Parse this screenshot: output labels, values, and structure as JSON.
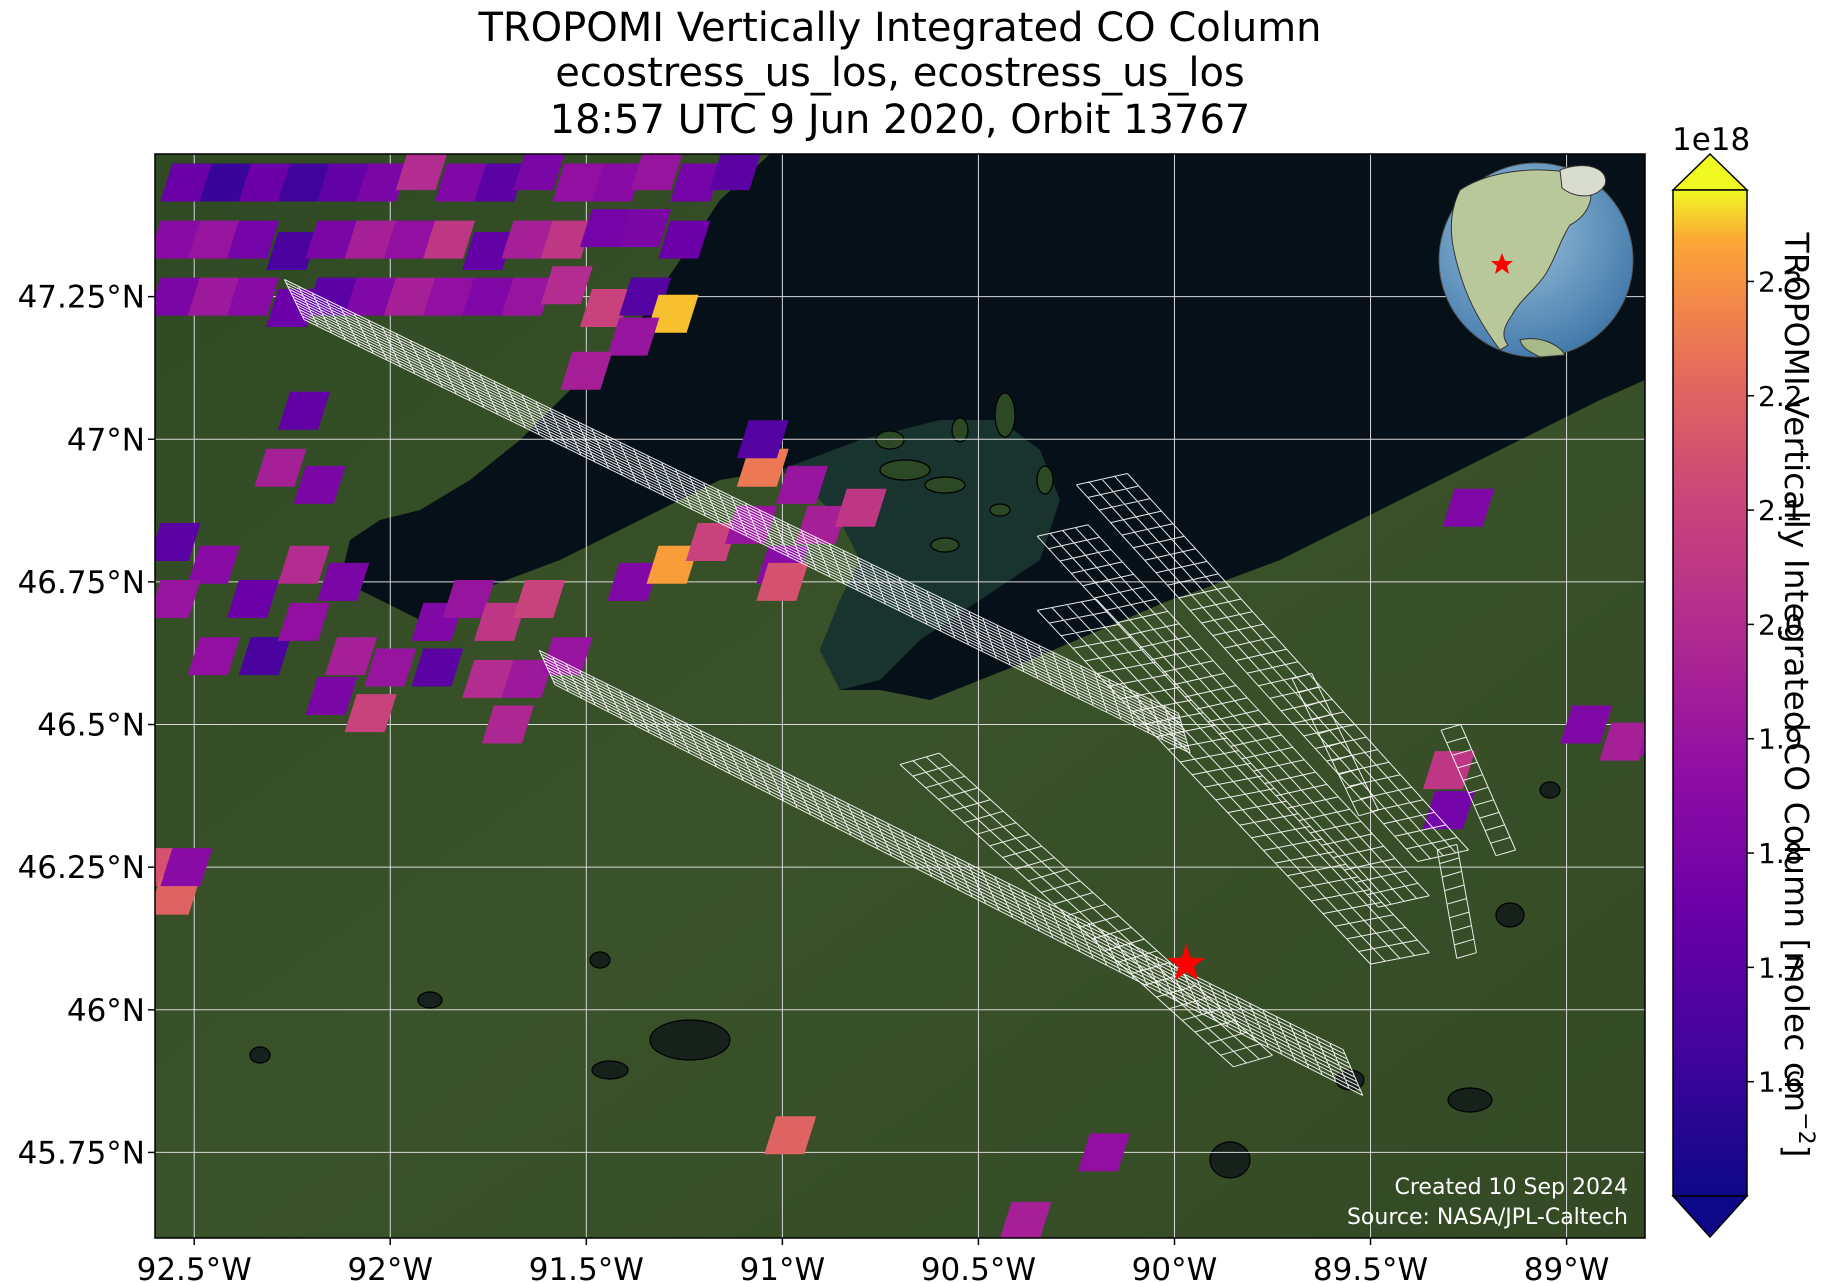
{
  "title_lines": [
    "TROPOMI Vertically Integrated CO Column",
    "ecostress_us_los, ecostress_us_los",
    "18:57 UTC 9 Jun 2020, Orbit 13767"
  ],
  "map": {
    "lon_range": [
      -92.6,
      -88.8
    ],
    "lat_range": [
      45.6,
      47.5
    ],
    "lon_ticks": [
      -92.5,
      -92.0,
      -91.5,
      -91.0,
      -90.5,
      -90.0,
      -89.5,
      -89.0
    ],
    "lon_tick_labels": [
      "92.5°W",
      "92°W",
      "91.5°W",
      "91°W",
      "90.5°W",
      "90°W",
      "89.5°W",
      "89°W"
    ],
    "lat_ticks": [
      47.25,
      47.0,
      46.75,
      46.5,
      46.25,
      46.0,
      45.75
    ],
    "lat_tick_labels": [
      "47.25°N",
      "47°N",
      "46.75°N",
      "46.5°N",
      "46.25°N",
      "46°N",
      "45.75°N"
    ],
    "gridlines": true,
    "basemap": "satellite imagery, Lake Superior shoreline (Apostle Islands)",
    "target_marker": {
      "lon": -89.97,
      "lat": 46.08,
      "symbol": "red-star"
    },
    "credit_lines": [
      "Created 10 Sep 2024",
      "Source: NASA/JPL-Caltech"
    ],
    "inset_globe": "orthographic globe centred on North America with red star",
    "pixels": [
      {
        "lon": -92.52,
        "lat": 47.45,
        "v": 1.75
      },
      {
        "lon": -92.42,
        "lat": 47.45,
        "v": 1.6
      },
      {
        "lon": -92.32,
        "lat": 47.45,
        "v": 1.75
      },
      {
        "lon": -92.22,
        "lat": 47.45,
        "v": 1.62
      },
      {
        "lon": -92.12,
        "lat": 47.45,
        "v": 1.72
      },
      {
        "lon": -92.02,
        "lat": 47.45,
        "v": 1.8
      },
      {
        "lon": -91.92,
        "lat": 47.47,
        "v": 2.0
      },
      {
        "lon": -91.82,
        "lat": 47.45,
        "v": 1.82
      },
      {
        "lon": -91.72,
        "lat": 47.45,
        "v": 1.7
      },
      {
        "lon": -91.62,
        "lat": 47.47,
        "v": 1.8
      },
      {
        "lon": -91.52,
        "lat": 47.45,
        "v": 1.88
      },
      {
        "lon": -91.42,
        "lat": 47.45,
        "v": 1.85
      },
      {
        "lon": -91.32,
        "lat": 47.47,
        "v": 1.9
      },
      {
        "lon": -91.22,
        "lat": 47.45,
        "v": 1.78
      },
      {
        "lon": -91.12,
        "lat": 47.47,
        "v": 1.7
      },
      {
        "lon": -92.55,
        "lat": 47.35,
        "v": 1.85
      },
      {
        "lon": -92.45,
        "lat": 47.35,
        "v": 1.9
      },
      {
        "lon": -92.35,
        "lat": 47.35,
        "v": 1.78
      },
      {
        "lon": -92.25,
        "lat": 47.33,
        "v": 1.65
      },
      {
        "lon": -92.15,
        "lat": 47.35,
        "v": 1.8
      },
      {
        "lon": -92.05,
        "lat": 47.35,
        "v": 1.95
      },
      {
        "lon": -91.95,
        "lat": 47.35,
        "v": 1.88
      },
      {
        "lon": -91.85,
        "lat": 47.35,
        "v": 2.05
      },
      {
        "lon": -91.75,
        "lat": 47.33,
        "v": 1.72
      },
      {
        "lon": -91.65,
        "lat": 47.35,
        "v": 1.95
      },
      {
        "lon": -91.55,
        "lat": 47.35,
        "v": 2.05
      },
      {
        "lon": -91.45,
        "lat": 47.37,
        "v": 1.78
      },
      {
        "lon": -91.35,
        "lat": 47.37,
        "v": 1.8
      },
      {
        "lon": -91.25,
        "lat": 47.35,
        "v": 1.75
      },
      {
        "lon": -92.55,
        "lat": 47.25,
        "v": 1.8
      },
      {
        "lon": -92.45,
        "lat": 47.25,
        "v": 1.92
      },
      {
        "lon": -92.35,
        "lat": 47.25,
        "v": 1.85
      },
      {
        "lon": -92.25,
        "lat": 47.23,
        "v": 1.75
      },
      {
        "lon": -92.15,
        "lat": 47.25,
        "v": 1.7
      },
      {
        "lon": -92.05,
        "lat": 47.25,
        "v": 1.82
      },
      {
        "lon": -91.95,
        "lat": 47.25,
        "v": 1.95
      },
      {
        "lon": -91.85,
        "lat": 47.25,
        "v": 1.88
      },
      {
        "lon": -91.75,
        "lat": 47.25,
        "v": 1.82
      },
      {
        "lon": -91.65,
        "lat": 47.25,
        "v": 1.9
      },
      {
        "lon": -91.55,
        "lat": 47.27,
        "v": 2.0
      },
      {
        "lon": -91.45,
        "lat": 47.23,
        "v": 2.1
      },
      {
        "lon": -91.35,
        "lat": 47.25,
        "v": 1.68
      },
      {
        "lon": -91.28,
        "lat": 47.22,
        "v": 2.35
      },
      {
        "lon": -91.38,
        "lat": 47.18,
        "v": 1.9
      },
      {
        "lon": -91.5,
        "lat": 47.12,
        "v": 1.95
      },
      {
        "lon": -92.22,
        "lat": 47.05,
        "v": 1.72
      },
      {
        "lon": -92.28,
        "lat": 46.95,
        "v": 1.95
      },
      {
        "lon": -92.18,
        "lat": 46.92,
        "v": 1.8
      },
      {
        "lon": -92.55,
        "lat": 46.82,
        "v": 1.7
      },
      {
        "lon": -92.45,
        "lat": 46.78,
        "v": 1.85
      },
      {
        "lon": -92.55,
        "lat": 46.72,
        "v": 1.9
      },
      {
        "lon": -92.35,
        "lat": 46.72,
        "v": 1.75
      },
      {
        "lon": -92.45,
        "lat": 46.62,
        "v": 1.88
      },
      {
        "lon": -92.32,
        "lat": 46.62,
        "v": 1.65
      },
      {
        "lon": -92.22,
        "lat": 46.68,
        "v": 1.88
      },
      {
        "lon": -92.12,
        "lat": 46.75,
        "v": 1.8
      },
      {
        "lon": -92.22,
        "lat": 46.78,
        "v": 2.0
      },
      {
        "lon": -92.1,
        "lat": 46.62,
        "v": 1.95
      },
      {
        "lon": -92.0,
        "lat": 46.6,
        "v": 1.9
      },
      {
        "lon": -92.15,
        "lat": 46.55,
        "v": 1.8
      },
      {
        "lon": -92.05,
        "lat": 46.52,
        "v": 2.1
      },
      {
        "lon": -91.88,
        "lat": 46.68,
        "v": 1.82
      },
      {
        "lon": -91.8,
        "lat": 46.72,
        "v": 1.9
      },
      {
        "lon": -91.72,
        "lat": 46.68,
        "v": 2.05
      },
      {
        "lon": -91.62,
        "lat": 46.72,
        "v": 2.1
      },
      {
        "lon": -91.88,
        "lat": 46.6,
        "v": 1.7
      },
      {
        "lon": -91.75,
        "lat": 46.58,
        "v": 2.0
      },
      {
        "lon": -91.65,
        "lat": 46.58,
        "v": 1.92
      },
      {
        "lon": -91.55,
        "lat": 46.62,
        "v": 1.9
      },
      {
        "lon": -91.7,
        "lat": 46.5,
        "v": 1.98
      },
      {
        "lon": -91.38,
        "lat": 46.75,
        "v": 1.82
      },
      {
        "lon": -91.28,
        "lat": 46.78,
        "v": 2.32
      },
      {
        "lon": -91.18,
        "lat": 46.82,
        "v": 2.1
      },
      {
        "lon": -91.08,
        "lat": 46.85,
        "v": 1.9
      },
      {
        "lon": -91.0,
        "lat": 46.78,
        "v": 1.85
      },
      {
        "lon": -90.9,
        "lat": 46.85,
        "v": 1.95
      },
      {
        "lon": -90.8,
        "lat": 46.88,
        "v": 2.05
      },
      {
        "lon": -90.95,
        "lat": 46.92,
        "v": 1.9
      },
      {
        "lon": -91.05,
        "lat": 46.95,
        "v": 2.25
      },
      {
        "lon": -91.05,
        "lat": 47.0,
        "v": 1.68
      },
      {
        "lon": -91.0,
        "lat": 46.75,
        "v": 2.15
      },
      {
        "lon": -89.25,
        "lat": 46.88,
        "v": 1.82
      },
      {
        "lon": -88.95,
        "lat": 46.5,
        "v": 1.82
      },
      {
        "lon": -88.85,
        "lat": 46.47,
        "v": 1.95
      },
      {
        "lon": -88.75,
        "lat": 46.48,
        "v": 1.9
      },
      {
        "lon": -89.3,
        "lat": 46.42,
        "v": 2.05
      },
      {
        "lon": -89.3,
        "lat": 46.35,
        "v": 1.78
      },
      {
        "lon": -92.62,
        "lat": 46.25,
        "v": 2.15
      },
      {
        "lon": -92.55,
        "lat": 46.2,
        "v": 2.2
      },
      {
        "lon": -92.52,
        "lat": 46.25,
        "v": 1.85
      },
      {
        "lon": -90.98,
        "lat": 45.78,
        "v": 2.2
      },
      {
        "lon": -90.18,
        "lat": 45.75,
        "v": 1.88
      },
      {
        "lon": -90.38,
        "lat": 45.63,
        "v": 1.95
      }
    ],
    "swaths": [
      {
        "corners": [
          [
            -92.27,
            47.28
          ],
          [
            -92.22,
            47.21
          ],
          [
            -89.96,
            46.45
          ],
          [
            -89.99,
            46.52
          ]
        ],
        "along": 64,
        "across": 12
      },
      {
        "corners": [
          [
            -91.62,
            46.63
          ],
          [
            -91.58,
            46.57
          ],
          [
            -89.52,
            45.85
          ],
          [
            -89.57,
            45.93
          ]
        ],
        "along": 60,
        "across": 10
      },
      {
        "corners": [
          [
            -90.25,
            46.92
          ],
          [
            -90.12,
            46.94
          ],
          [
            -89.25,
            46.28
          ],
          [
            -89.38,
            46.26
          ]
        ],
        "along": 30,
        "across": 4
      },
      {
        "corners": [
          [
            -90.35,
            46.83
          ],
          [
            -90.22,
            46.85
          ],
          [
            -89.35,
            46.2
          ],
          [
            -89.48,
            46.18
          ]
        ],
        "along": 30,
        "across": 4
      },
      {
        "corners": [
          [
            -90.35,
            46.7
          ],
          [
            -90.2,
            46.72
          ],
          [
            -89.35,
            46.1
          ],
          [
            -89.5,
            46.08
          ]
        ],
        "along": 28,
        "across": 4
      },
      {
        "corners": [
          [
            -90.7,
            46.43
          ],
          [
            -90.6,
            46.45
          ],
          [
            -89.75,
            45.92
          ],
          [
            -89.85,
            45.9
          ]
        ],
        "along": 26,
        "across": 3
      },
      {
        "corners": [
          [
            -89.7,
            46.58
          ],
          [
            -89.65,
            46.59
          ],
          [
            -89.48,
            46.35
          ],
          [
            -89.53,
            46.34
          ]
        ],
        "along": 10,
        "across": 1
      },
      {
        "corners": [
          [
            -89.32,
            46.49
          ],
          [
            -89.27,
            46.5
          ],
          [
            -89.13,
            46.28
          ],
          [
            -89.18,
            46.27
          ]
        ],
        "along": 10,
        "across": 1
      },
      {
        "corners": [
          [
            -89.33,
            46.28
          ],
          [
            -89.28,
            46.29
          ],
          [
            -89.23,
            46.1
          ],
          [
            -89.28,
            46.09
          ]
        ],
        "along": 8,
        "across": 1
      }
    ]
  },
  "colorbar": {
    "label": "TROPOMI Vertically Integrated CO Column [molec cm$^{-2}$]",
    "label_text": "TROPOMI Vertically Integrated CO Column [molec cm",
    "label_sup": "−2",
    "label_close": "]",
    "exponent": "1e18",
    "min": 1.5,
    "max": 2.38,
    "colormap": "plasma",
    "extend": "both",
    "ticks": [
      1.6,
      1.7,
      1.8,
      1.9,
      2.0,
      2.1,
      2.2,
      2.3
    ],
    "tick_labels": [
      "1.6",
      "1.7",
      "1.8",
      "1.9",
      "2.0",
      "2.1",
      "2.2",
      "2.3"
    ]
  }
}
